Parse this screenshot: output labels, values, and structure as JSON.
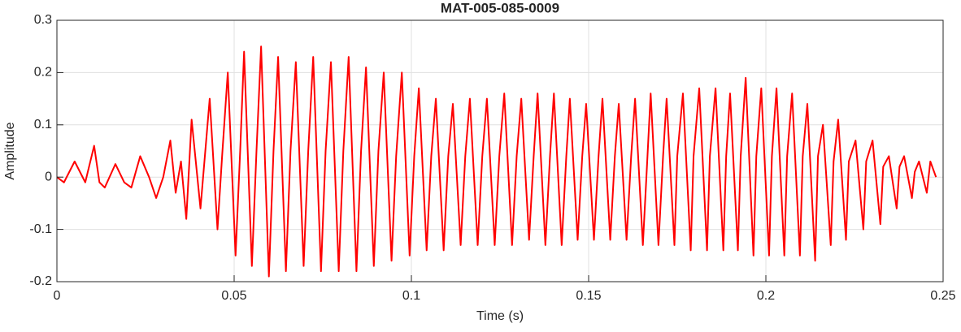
{
  "chart_data": {
    "type": "line",
    "title": "MAT-005-085-0009",
    "xlabel": "Time (s)",
    "ylabel": "Amplitude",
    "xlim": [
      0,
      0.25
    ],
    "ylim": [
      -0.2,
      0.3
    ],
    "xticks": [
      0,
      0.05,
      0.1,
      0.15,
      0.2,
      0.25
    ],
    "yticks": [
      -0.2,
      -0.1,
      0,
      0.1,
      0.2,
      0.3
    ],
    "grid": true,
    "series": [
      {
        "color": "#ff0000",
        "x": [
          0,
          0.002,
          0.005,
          0.008,
          0.0105,
          0.012,
          0.0135,
          0.0165,
          0.019,
          0.021,
          0.0235,
          0.026,
          0.028,
          0.03,
          0.032,
          0.0335,
          0.035,
          0.0365,
          0.038,
          0.0405,
          0.0431,
          0.0453,
          0.0466,
          0.0482,
          0.0504,
          0.0517,
          0.0528,
          0.055,
          0.0563,
          0.0576,
          0.0598,
          0.0611,
          0.0624,
          0.0646,
          0.0659,
          0.0674,
          0.0696,
          0.0709,
          0.0723,
          0.0745,
          0.0758,
          0.0773,
          0.0795,
          0.0808,
          0.0823,
          0.0845,
          0.0858,
          0.0872,
          0.0894,
          0.0907,
          0.0922,
          0.0944,
          0.0957,
          0.0973,
          0.0995,
          0.1008,
          0.1021,
          0.1043,
          0.1056,
          0.1069,
          0.1091,
          0.1104,
          0.1117,
          0.1139,
          0.1152,
          0.1165,
          0.1187,
          0.12,
          0.1213,
          0.1235,
          0.1248,
          0.1262,
          0.1284,
          0.1297,
          0.131,
          0.1332,
          0.1345,
          0.1356,
          0.1378,
          0.1391,
          0.1402,
          0.1424,
          0.1437,
          0.1447,
          0.1469,
          0.1482,
          0.1493,
          0.1515,
          0.1528,
          0.1539,
          0.1561,
          0.1574,
          0.1585,
          0.1607,
          0.162,
          0.1631,
          0.1653,
          0.1666,
          0.1675,
          0.1697,
          0.171,
          0.172,
          0.1742,
          0.175,
          0.1766,
          0.1788,
          0.1796,
          0.1812,
          0.1834,
          0.1842,
          0.1858,
          0.188,
          0.1888,
          0.1899,
          0.1921,
          0.1929,
          0.1943,
          0.1965,
          0.1973,
          0.1987,
          0.2009,
          0.2017,
          0.203,
          0.2052,
          0.206,
          0.2074,
          0.2096,
          0.2104,
          0.2117,
          0.2139,
          0.2147,
          0.2161,
          0.2183,
          0.2191,
          0.2204,
          0.2226,
          0.2234,
          0.2253,
          0.2275,
          0.2283,
          0.2301,
          0.2323,
          0.2331,
          0.2347,
          0.2369,
          0.2377,
          0.239,
          0.2412,
          0.242,
          0.2432,
          0.2454,
          0.2464,
          0.248
        ],
        "values": [
          0,
          -0.01,
          0.03,
          -0.01,
          0.06,
          -0.01,
          -0.02,
          0.025,
          -0.01,
          -0.02,
          0.04,
          0,
          -0.04,
          0,
          0.07,
          -0.03,
          0.03,
          -0.08,
          0.11,
          -0.06,
          0.15,
          -0.1,
          0.04,
          0.2,
          -0.15,
          0.05,
          0.24,
          -0.17,
          0.05,
          0.25,
          -0.19,
          0.05,
          0.23,
          -0.18,
          0.05,
          0.22,
          -0.17,
          0.05,
          0.23,
          -0.18,
          0.05,
          0.22,
          -0.18,
          0.05,
          0.23,
          -0.18,
          0.05,
          0.21,
          -0.17,
          0.05,
          0.2,
          -0.16,
          0.04,
          0.2,
          -0.15,
          0.04,
          0.17,
          -0.14,
          0.04,
          0.15,
          -0.14,
          0.04,
          0.14,
          -0.13,
          0.04,
          0.15,
          -0.13,
          0.04,
          0.15,
          -0.13,
          0.04,
          0.16,
          -0.13,
          0.04,
          0.15,
          -0.12,
          0.04,
          0.16,
          -0.13,
          0.04,
          0.16,
          -0.13,
          0.04,
          0.15,
          -0.12,
          0.04,
          0.14,
          -0.12,
          0.04,
          0.15,
          -0.12,
          0.04,
          0.14,
          -0.12,
          0.04,
          0.15,
          -0.13,
          0.04,
          0.16,
          -0.13,
          0.04,
          0.15,
          -0.13,
          0.04,
          0.16,
          -0.14,
          0.04,
          0.17,
          -0.14,
          0.04,
          0.17,
          -0.14,
          0.04,
          0.16,
          -0.14,
          0.04,
          0.19,
          -0.15,
          0.04,
          0.17,
          -0.15,
          0.04,
          0.17,
          -0.15,
          0.04,
          0.16,
          -0.15,
          0.04,
          0.14,
          -0.16,
          0.04,
          0.1,
          -0.13,
          0.03,
          0.11,
          -0.12,
          0.03,
          0.07,
          -0.1,
          0.03,
          0.07,
          -0.09,
          0.02,
          0.04,
          -0.06,
          0.02,
          0.04,
          -0.04,
          0.01,
          0.03,
          -0.03,
          0.03,
          0
        ]
      }
    ]
  }
}
